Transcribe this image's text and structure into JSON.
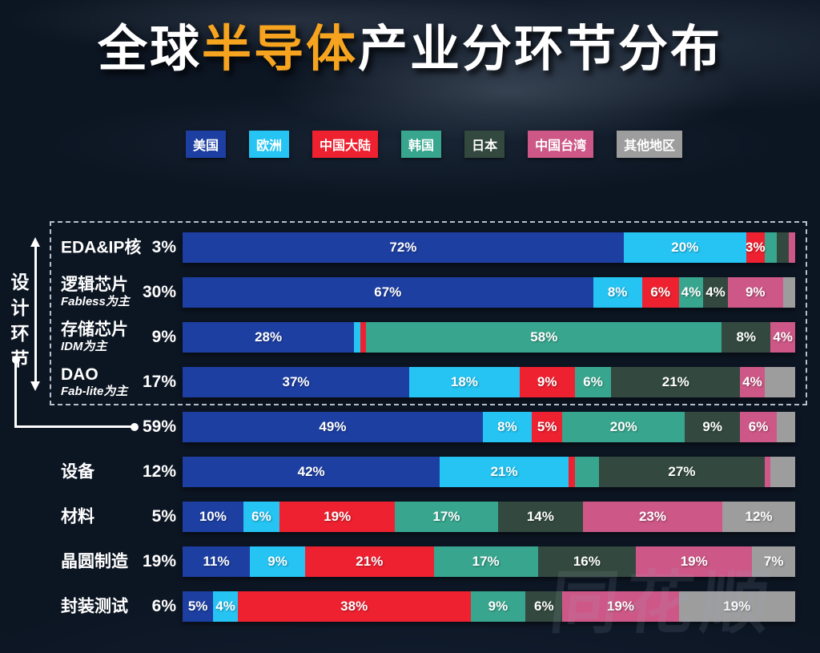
{
  "title": {
    "prefix": "全球",
    "highlight": "半导体",
    "suffix": "产业分环节分布",
    "highlight_color": "#f6a41f"
  },
  "legend": [
    {
      "key": "us",
      "label": "美国"
    },
    {
      "key": "europe",
      "label": "欧洲"
    },
    {
      "key": "china",
      "label": "中国大陆"
    },
    {
      "key": "korea",
      "label": "韩国"
    },
    {
      "key": "japan",
      "label": "日本"
    },
    {
      "key": "taiwan",
      "label": "中国台湾"
    },
    {
      "key": "other",
      "label": "其他地区"
    }
  ],
  "colors": {
    "us": "#1d3fa2",
    "europe": "#25c4f2",
    "china": "#ee2130",
    "korea": "#38a68e",
    "japan": "#33493f",
    "taiwan": "#cd5786",
    "other": "#9d9d9d"
  },
  "annotations": {
    "design_label": "设计环节",
    "watermark": "同花顺"
  },
  "chart_data": {
    "type": "bar",
    "stacked": true,
    "orientation": "horizontal",
    "unit": "%",
    "title": "全球半导体产业分环节分布",
    "legend_entries": [
      "美国",
      "欧洲",
      "中国大陆",
      "韩国",
      "日本",
      "中国台湾",
      "其他地区"
    ],
    "rows": [
      {
        "category": "EDA&IP核",
        "subtitle": "",
        "total": "3%",
        "in_design_box": true,
        "segments": [
          {
            "key": "us",
            "value": 72,
            "label": "72%"
          },
          {
            "key": "europe",
            "value": 20,
            "label": "20%"
          },
          {
            "key": "china",
            "value": 3,
            "label": "3%"
          },
          {
            "key": "korea",
            "value": 2,
            "label": ""
          },
          {
            "key": "japan",
            "value": 2,
            "label": ""
          },
          {
            "key": "taiwan",
            "value": 1,
            "label": ""
          }
        ]
      },
      {
        "category": "逻辑芯片",
        "subtitle": "Fabless为主",
        "total": "30%",
        "in_design_box": true,
        "segments": [
          {
            "key": "us",
            "value": 67,
            "label": "67%"
          },
          {
            "key": "europe",
            "value": 8,
            "label": "8%"
          },
          {
            "key": "china",
            "value": 6,
            "label": "6%"
          },
          {
            "key": "korea",
            "value": 4,
            "label": "4%"
          },
          {
            "key": "japan",
            "value": 4,
            "label": "4%"
          },
          {
            "key": "taiwan",
            "value": 9,
            "label": "9%"
          },
          {
            "key": "other",
            "value": 2,
            "label": ""
          }
        ]
      },
      {
        "category": "存储芯片",
        "subtitle": "IDM为主",
        "total": "9%",
        "in_design_box": true,
        "segments": [
          {
            "key": "us",
            "value": 28,
            "label": "28%"
          },
          {
            "key": "europe",
            "value": 1,
            "label": ""
          },
          {
            "key": "china",
            "value": 1,
            "label": ""
          },
          {
            "key": "korea",
            "value": 58,
            "label": "58%"
          },
          {
            "key": "japan",
            "value": 8,
            "label": "8%"
          },
          {
            "key": "taiwan",
            "value": 4,
            "label": "4%"
          }
        ]
      },
      {
        "category": "DAO",
        "subtitle": "Fab-lite为主",
        "total": "17%",
        "in_design_box": true,
        "segments": [
          {
            "key": "us",
            "value": 37,
            "label": "37%"
          },
          {
            "key": "europe",
            "value": 18,
            "label": "18%"
          },
          {
            "key": "china",
            "value": 9,
            "label": "9%"
          },
          {
            "key": "korea",
            "value": 6,
            "label": "6%"
          },
          {
            "key": "japan",
            "value": 21,
            "label": "21%"
          },
          {
            "key": "taiwan",
            "value": 4,
            "label": "4%"
          },
          {
            "key": "other",
            "value": 5,
            "label": ""
          }
        ]
      },
      {
        "category": "",
        "subtitle": "",
        "total": "59%",
        "in_design_box": false,
        "segments": [
          {
            "key": "us",
            "value": 49,
            "label": "49%"
          },
          {
            "key": "europe",
            "value": 8,
            "label": "8%"
          },
          {
            "key": "china",
            "value": 5,
            "label": "5%"
          },
          {
            "key": "korea",
            "value": 20,
            "label": "20%"
          },
          {
            "key": "japan",
            "value": 9,
            "label": "9%"
          },
          {
            "key": "taiwan",
            "value": 6,
            "label": "6%"
          },
          {
            "key": "other",
            "value": 3,
            "label": ""
          }
        ]
      },
      {
        "category": "设备",
        "subtitle": "",
        "total": "12%",
        "in_design_box": false,
        "segments": [
          {
            "key": "us",
            "value": 42,
            "label": "42%"
          },
          {
            "key": "europe",
            "value": 21,
            "label": "21%"
          },
          {
            "key": "china",
            "value": 1,
            "label": ""
          },
          {
            "key": "korea",
            "value": 4,
            "label": ""
          },
          {
            "key": "japan",
            "value": 27,
            "label": "27%"
          },
          {
            "key": "taiwan",
            "value": 1,
            "label": ""
          },
          {
            "key": "other",
            "value": 4,
            "label": ""
          }
        ]
      },
      {
        "category": "材料",
        "subtitle": "",
        "total": "5%",
        "in_design_box": false,
        "segments": [
          {
            "key": "us",
            "value": 10,
            "label": "10%"
          },
          {
            "key": "europe",
            "value": 6,
            "label": "6%"
          },
          {
            "key": "china",
            "value": 19,
            "label": "19%"
          },
          {
            "key": "korea",
            "value": 17,
            "label": "17%"
          },
          {
            "key": "japan",
            "value": 14,
            "label": "14%"
          },
          {
            "key": "taiwan",
            "value": 23,
            "label": "23%"
          },
          {
            "key": "other",
            "value": 12,
            "label": "12%"
          }
        ]
      },
      {
        "category": "晶圆制造",
        "subtitle": "",
        "total": "19%",
        "in_design_box": false,
        "segments": [
          {
            "key": "us",
            "value": 11,
            "label": "11%"
          },
          {
            "key": "europe",
            "value": 9,
            "label": "9%"
          },
          {
            "key": "china",
            "value": 21,
            "label": "21%"
          },
          {
            "key": "korea",
            "value": 17,
            "label": "17%"
          },
          {
            "key": "japan",
            "value": 16,
            "label": "16%"
          },
          {
            "key": "taiwan",
            "value": 19,
            "label": "19%"
          },
          {
            "key": "other",
            "value": 7,
            "label": "7%"
          }
        ]
      },
      {
        "category": "封装测试",
        "subtitle": "",
        "total": "6%",
        "in_design_box": false,
        "segments": [
          {
            "key": "us",
            "value": 5,
            "label": "5%"
          },
          {
            "key": "europe",
            "value": 4,
            "label": "4%"
          },
          {
            "key": "china",
            "value": 38,
            "label": "38%"
          },
          {
            "key": "korea",
            "value": 9,
            "label": "9%"
          },
          {
            "key": "japan",
            "value": 6,
            "label": "6%"
          },
          {
            "key": "taiwan",
            "value": 19,
            "label": "19%"
          },
          {
            "key": "other",
            "value": 19,
            "label": "19%"
          }
        ]
      }
    ]
  }
}
